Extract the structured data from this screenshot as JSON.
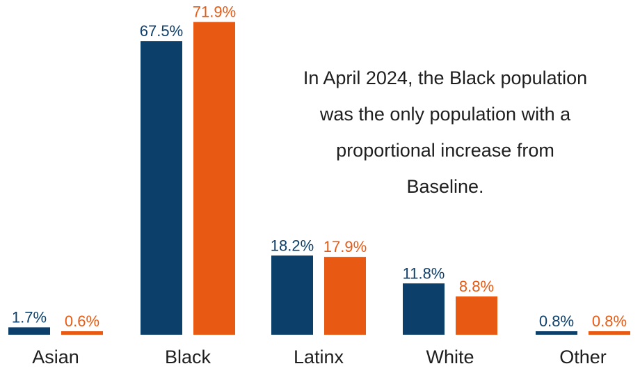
{
  "chart_data": {
    "type": "bar",
    "categories": [
      "Asian",
      "Black",
      "Latinx",
      "White",
      "Other"
    ],
    "series": [
      {
        "color": "#0d3f6b",
        "values": [
          1.7,
          67.5,
          18.2,
          11.8,
          0.8
        ],
        "labels": [
          "1.7%",
          "67.5%",
          "18.2%",
          "11.8%",
          "0.8%"
        ]
      },
      {
        "color": "#e85a13",
        "values": [
          0.6,
          71.9,
          17.9,
          8.8,
          0.8
        ],
        "labels": [
          "0.6%",
          "71.9%",
          "17.9%",
          "8.8%",
          "0.8%"
        ]
      }
    ],
    "annotation": "In April 2024, the Black population was the only population with a proportional increase from Baseline.",
    "value_unit": "%"
  }
}
